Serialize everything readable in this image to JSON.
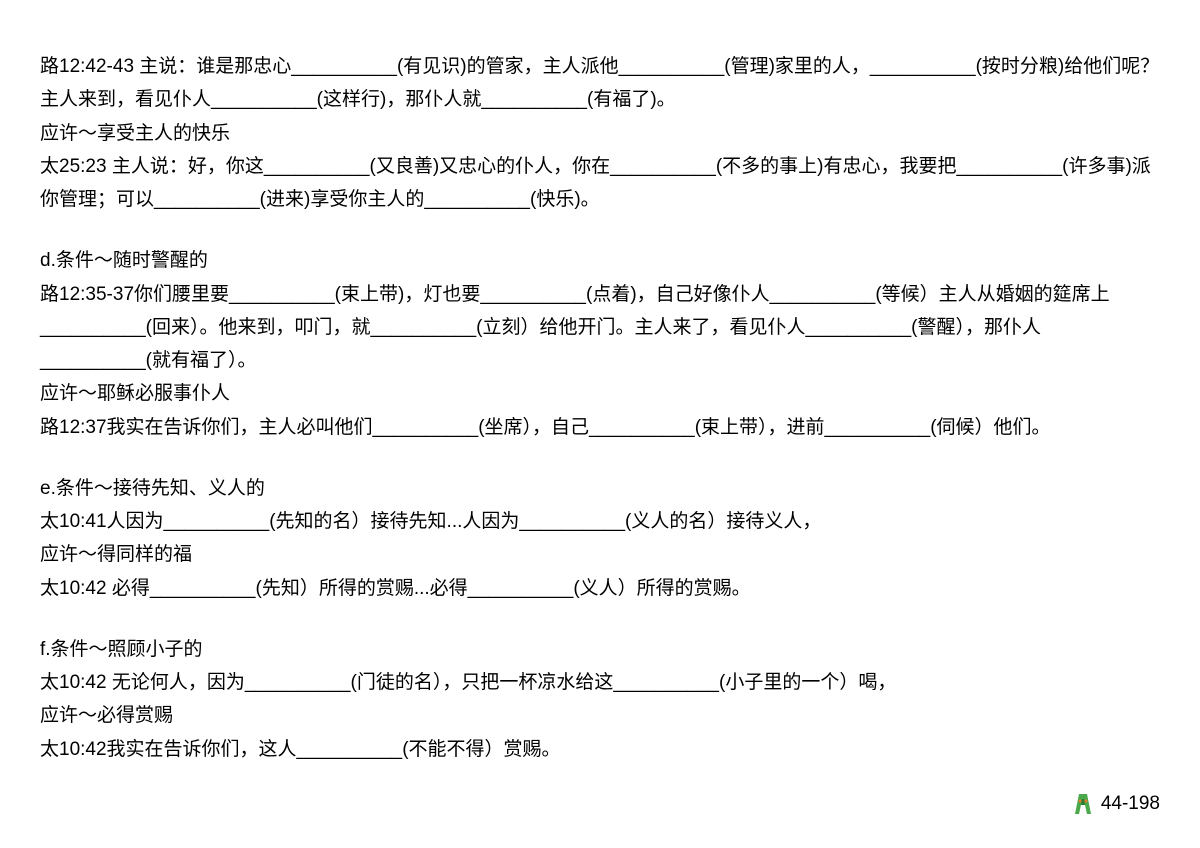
{
  "colors": {
    "text": "#000000",
    "background": "#ffffff",
    "logo_green": "#4aa94a",
    "logo_dark": "#2e7a2e",
    "logo_orange": "#e8772e"
  },
  "typography": {
    "font_family": "Microsoft YaHei / PingFang SC",
    "font_size_pt": 14,
    "line_height": 1.75
  },
  "lines": [
    "路12:42-43 主说：谁是那忠心__________(有见识)的管家，主人派他__________(管理)家里的人，__________(按时分粮)给他们呢？主人来到，看见仆人__________(这样行)，那仆人就__________(有福了)。",
    "应许～享受主人的快乐",
    "太25:23 主人说：好，你这__________(又良善)又忠心的仆人，你在__________(不多的事上)有忠心，我要把__________(许多事)派你管理；可以__________(进来)享受你主人的__________(快乐)。",
    "",
    "d.条件～随时警醒的",
    "路12:35-37你们腰里要__________(束上带)，灯也要__________(点着)，自己好像仆人__________(等候）主人从婚姻的筵席上__________(回来）。他来到，叩门，就__________(立刻）给他开门。主人来了，看见仆人__________(警醒），那仆人__________(就有福了）。",
    "应许～耶稣必服事仆人",
    "路12:37我实在告诉你们，主人必叫他们__________(坐席），自己__________(束上带），进前__________(伺候）他们。",
    "",
    "e.条件～接待先知、义人的",
    "太10:41人因为__________(先知的名）接待先知...人因为__________(义人的名）接待义人，",
    "应许～得同样的福",
    "太10:42 必得__________(先知）所得的赏赐...必得__________(义人）所得的赏赐。",
    "",
    "f.条件～照顾小子的",
    "太10:42 无论何人，因为__________(门徒的名），只把一杯凉水给这__________(小子里的一个）喝，",
    "应许～必得赏赐",
    "太10:42我实在告诉你们，这人__________(不能不得）赏赐。"
  ],
  "footer": {
    "page_number": "44-198"
  }
}
